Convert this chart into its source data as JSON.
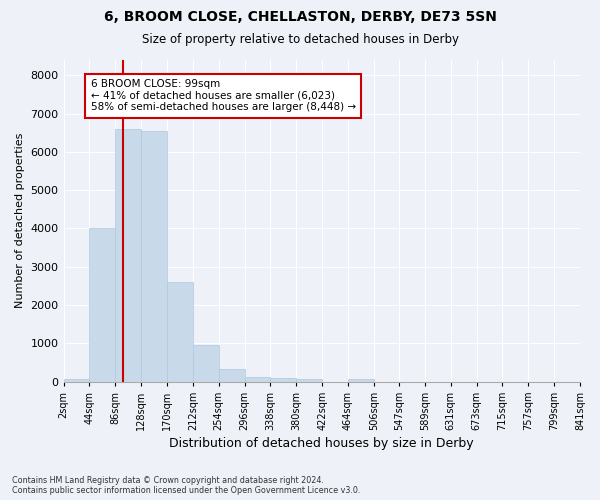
{
  "title": "6, BROOM CLOSE, CHELLASTON, DERBY, DE73 5SN",
  "subtitle": "Size of property relative to detached houses in Derby",
  "xlabel": "Distribution of detached houses by size in Derby",
  "ylabel": "Number of detached properties",
  "bar_color": "#c8d9ea",
  "bar_edge_color": "#b0c8e0",
  "background_color": "#eef2f8",
  "grid_color": "#ffffff",
  "bin_edges": [
    2,
    44,
    86,
    128,
    170,
    212,
    254,
    296,
    338,
    380,
    422,
    464,
    506,
    547,
    589,
    631,
    673,
    715,
    757,
    799,
    841
  ],
  "bin_labels": [
    "2sqm",
    "44sqm",
    "86sqm",
    "128sqm",
    "170sqm",
    "212sqm",
    "254sqm",
    "296sqm",
    "338sqm",
    "380sqm",
    "422sqm",
    "464sqm",
    "506sqm",
    "547sqm",
    "589sqm",
    "631sqm",
    "673sqm",
    "715sqm",
    "757sqm",
    "799sqm",
    "841sqm"
  ],
  "bar_heights": [
    65,
    4000,
    6600,
    6550,
    2600,
    950,
    320,
    120,
    100,
    70,
    0,
    70,
    0,
    0,
    0,
    0,
    0,
    0,
    0,
    0
  ],
  "ylim": [
    0,
    8400
  ],
  "yticks": [
    0,
    1000,
    2000,
    3000,
    4000,
    5000,
    6000,
    7000,
    8000
  ],
  "property_line_x": 99,
  "property_line_color": "#cc0000",
  "annotation_text": "6 BROOM CLOSE: 99sqm\n← 41% of detached houses are smaller (6,023)\n58% of semi-detached houses are larger (8,448) →",
  "annotation_box_color": "#ffffff",
  "annotation_box_edge": "#cc0000",
  "footer_line1": "Contains HM Land Registry data © Crown copyright and database right 2024.",
  "footer_line2": "Contains public sector information licensed under the Open Government Licence v3.0."
}
